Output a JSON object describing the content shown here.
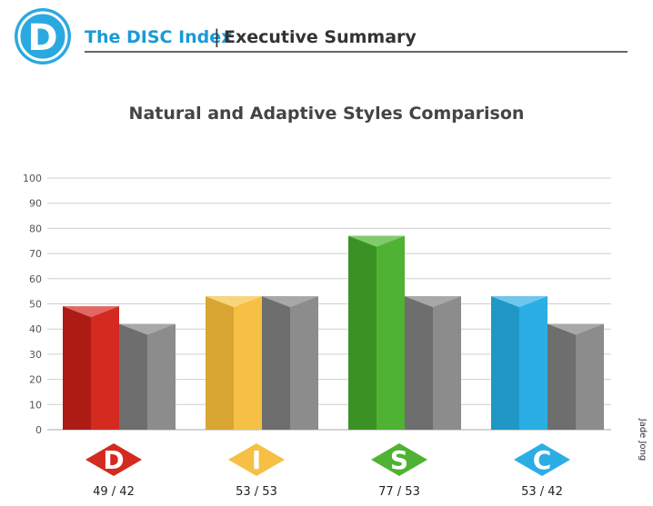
{
  "header": {
    "logo_letter": "D",
    "brand": "The DISC Index",
    "separator": "|",
    "section": "Executive Summary",
    "colors": {
      "logo": "#2aa9e0",
      "brand": "#1a9ad6",
      "section": "#333333",
      "rule": "#333333"
    }
  },
  "side_label": "Jade Jong",
  "chart_data": {
    "type": "bar",
    "title": "Natural and Adaptive Styles Comparison",
    "xlabel": "",
    "ylabel": "",
    "ylim": [
      0,
      100
    ],
    "yticks": [
      0,
      10,
      20,
      30,
      40,
      50,
      60,
      70,
      80,
      90,
      100
    ],
    "grid": true,
    "categories": [
      "D",
      "I",
      "S",
      "C"
    ],
    "series": [
      {
        "values": [
          49,
          53,
          77,
          53
        ]
      },
      {
        "values": [
          42,
          53,
          53,
          42
        ]
      }
    ],
    "category_labels": [
      "49 / 42",
      "53 / 53",
      "77 / 53",
      "53 / 42"
    ],
    "category_colors": [
      {
        "front": "#d42a1f",
        "side": "#ad1c14",
        "top": "#e06a63"
      },
      {
        "front": "#f5c043",
        "side": "#d9a633",
        "top": "#f8d57d"
      },
      {
        "front": "#4fb233",
        "side": "#3a9224",
        "top": "#7fcb6a"
      },
      {
        "front": "#2aaee4",
        "side": "#2097c5",
        "top": "#6dc7ee"
      }
    ],
    "adaptive_colors": {
      "front": "#8c8c8c",
      "side": "#6e6e6e",
      "top": "#a8a8a8"
    }
  }
}
